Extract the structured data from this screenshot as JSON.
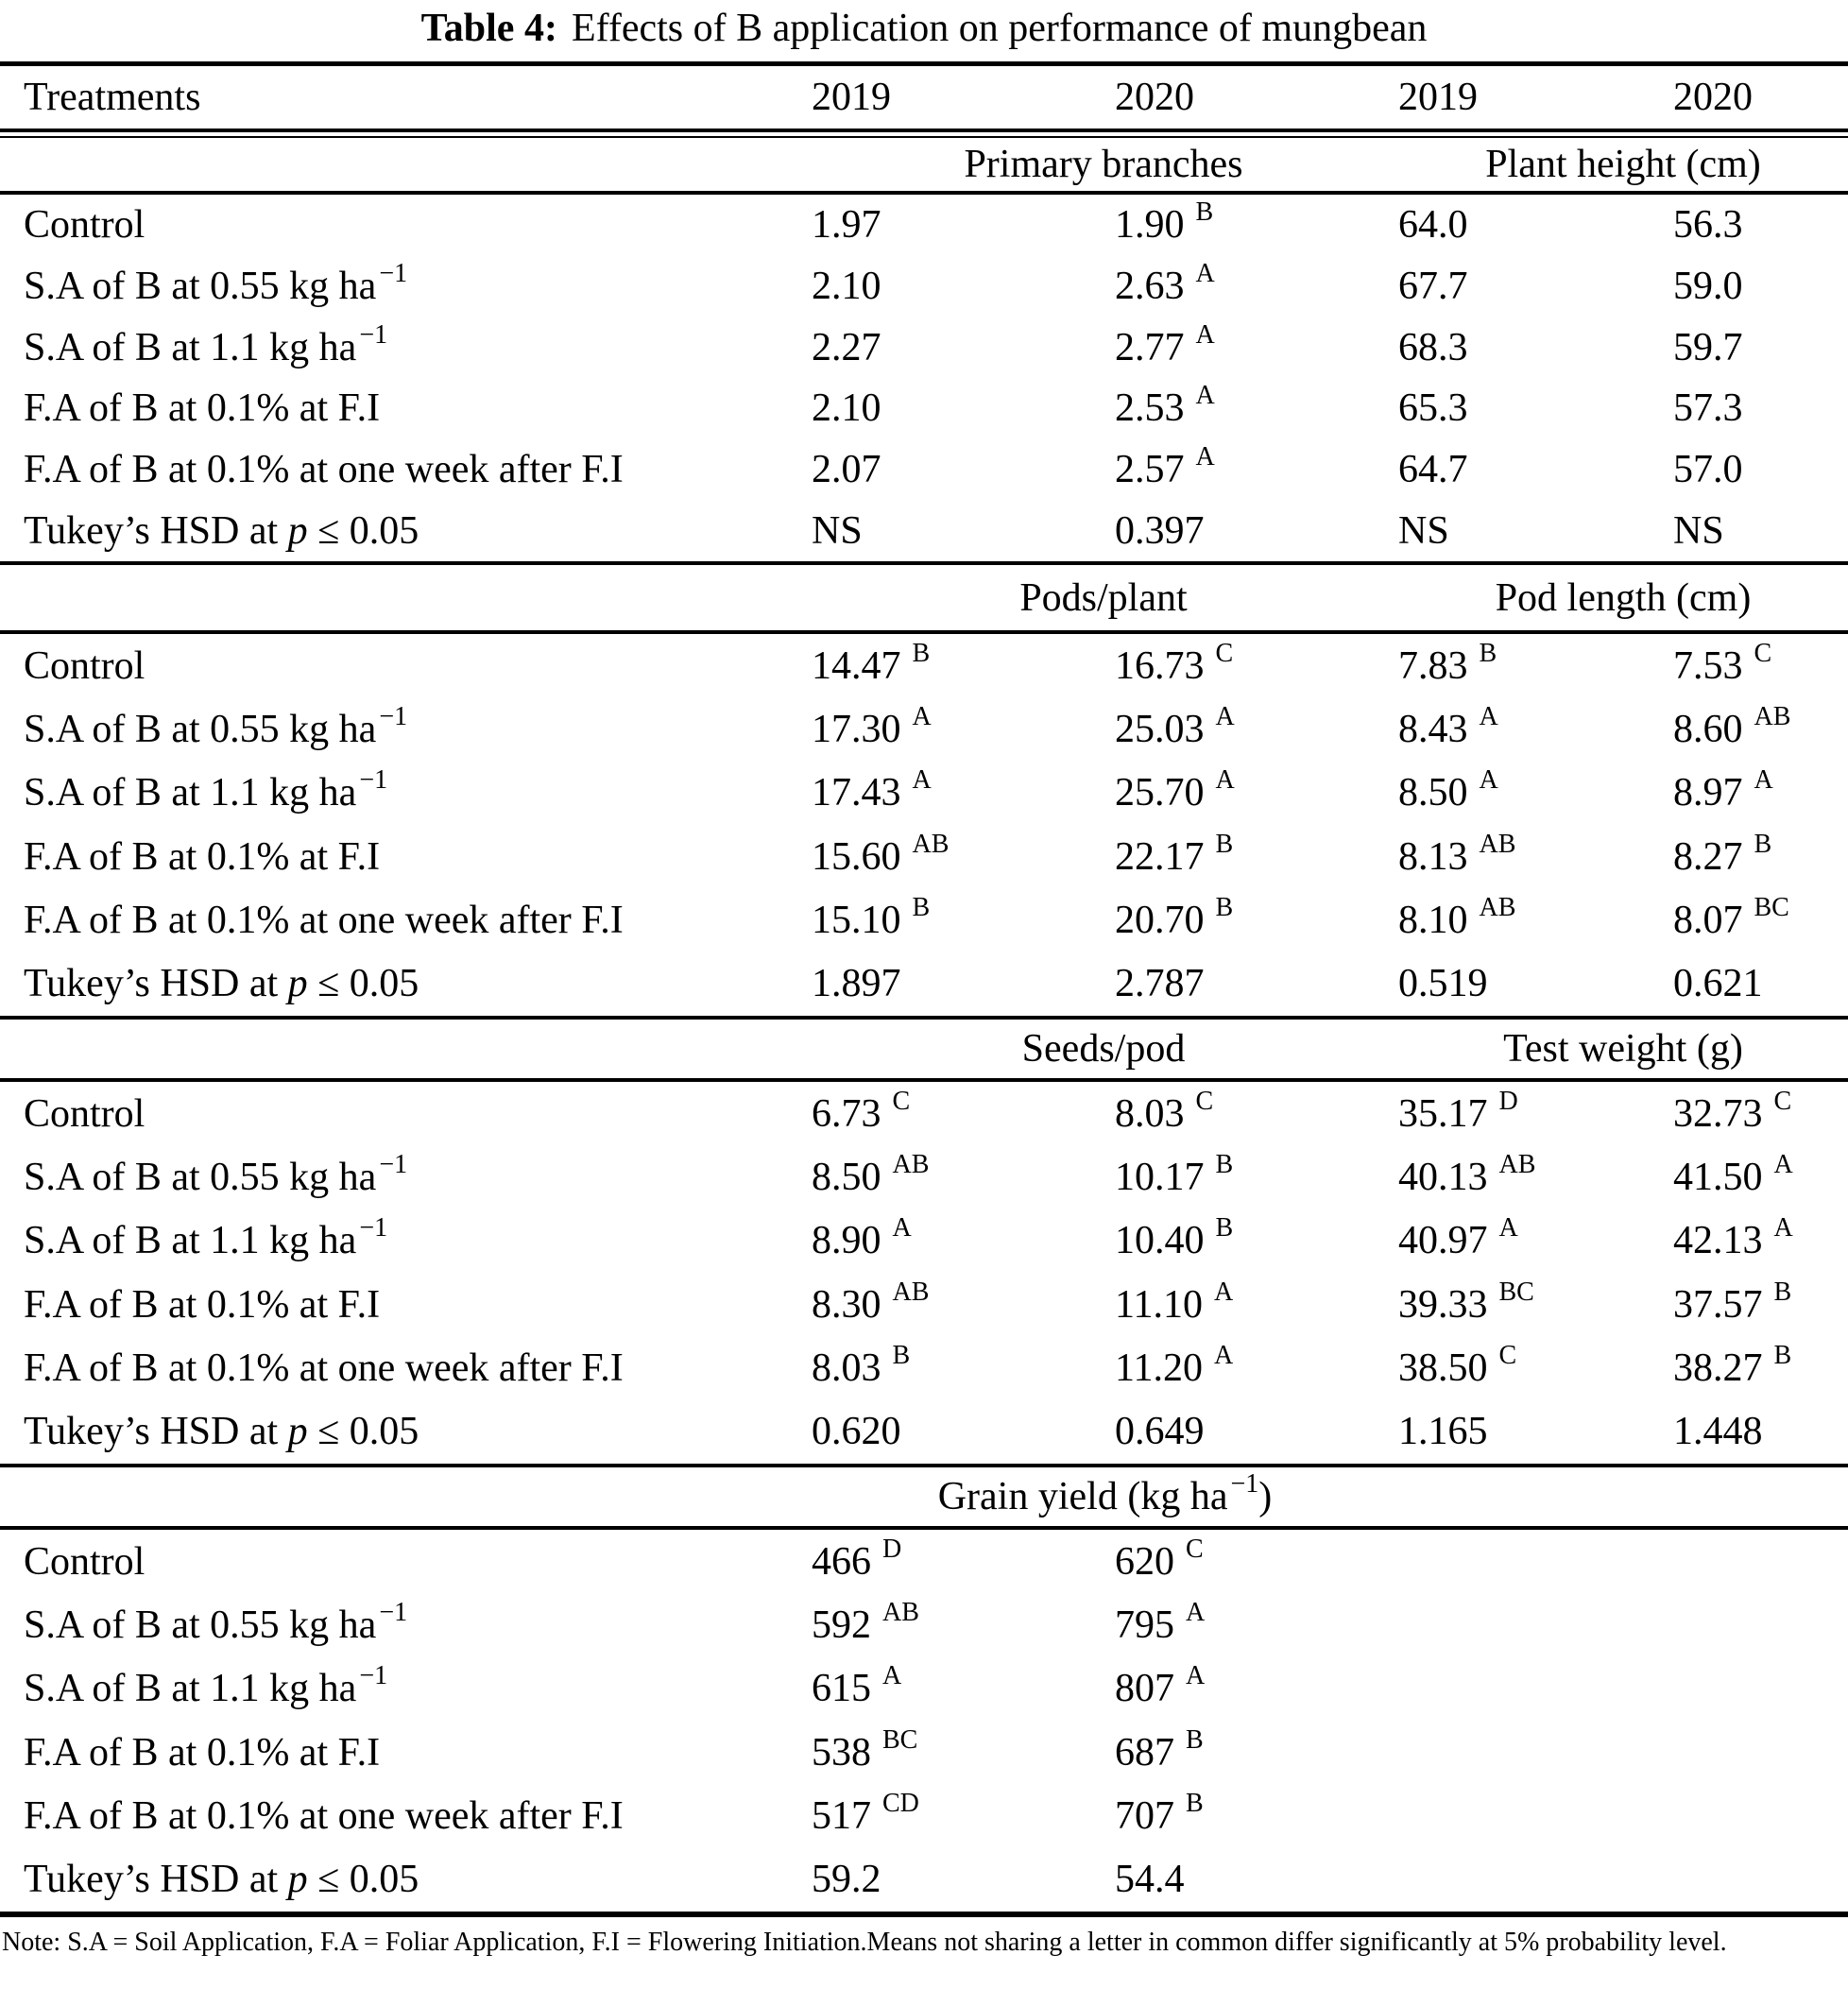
{
  "title": {
    "label": "Table 4:",
    "text": "Effects of B application on performance of mungbean"
  },
  "header": {
    "treatments": "Treatments",
    "years": [
      "2019",
      "2020",
      "2019",
      "2020"
    ]
  },
  "sections": [
    {
      "group_left": {
        "pre": "Primary branches",
        "sup": "",
        "post": ""
      },
      "group_right": {
        "pre": "Plant height (cm)",
        "sup": "",
        "post": ""
      },
      "rows": [
        {
          "label": {
            "pre": "Control",
            "it": "",
            "post": "",
            "sup": ""
          },
          "cells": [
            {
              "v": "1.97",
              "s": ""
            },
            {
              "v": "1.90",
              "s": "B"
            },
            {
              "v": "64.0",
              "s": ""
            },
            {
              "v": "56.3",
              "s": ""
            }
          ]
        },
        {
          "label": {
            "pre": "S.A of B at 0.55 kg ha",
            "it": "",
            "post": "",
            "sup": "−1"
          },
          "cells": [
            {
              "v": "2.10",
              "s": ""
            },
            {
              "v": "2.63",
              "s": "A"
            },
            {
              "v": "67.7",
              "s": ""
            },
            {
              "v": "59.0",
              "s": ""
            }
          ]
        },
        {
          "label": {
            "pre": "S.A of B at 1.1 kg ha",
            "it": "",
            "post": "",
            "sup": "−1"
          },
          "cells": [
            {
              "v": "2.27",
              "s": ""
            },
            {
              "v": "2.77",
              "s": "A"
            },
            {
              "v": "68.3",
              "s": ""
            },
            {
              "v": "59.7",
              "s": ""
            }
          ]
        },
        {
          "label": {
            "pre": "F.A of B at 0.1% at F.I",
            "it": "",
            "post": "",
            "sup": ""
          },
          "cells": [
            {
              "v": "2.10",
              "s": ""
            },
            {
              "v": "2.53",
              "s": "A"
            },
            {
              "v": "65.3",
              "s": ""
            },
            {
              "v": "57.3",
              "s": ""
            }
          ]
        },
        {
          "label": {
            "pre": "F.A of B at 0.1% at one week after F.I",
            "it": "",
            "post": "",
            "sup": ""
          },
          "cells": [
            {
              "v": "2.07",
              "s": ""
            },
            {
              "v": "2.57",
              "s": "A"
            },
            {
              "v": "64.7",
              "s": ""
            },
            {
              "v": "57.0",
              "s": ""
            }
          ]
        },
        {
          "label": {
            "pre": "Tukey’s HSD at ",
            "it": "p",
            "post": " ≤ 0.05",
            "sup": ""
          },
          "cells": [
            {
              "v": "NS",
              "s": ""
            },
            {
              "v": "0.397",
              "s": ""
            },
            {
              "v": "NS",
              "s": ""
            },
            {
              "v": "NS",
              "s": ""
            }
          ]
        }
      ]
    },
    {
      "group_left": {
        "pre": "Pods/plant",
        "sup": "",
        "post": ""
      },
      "group_right": {
        "pre": "Pod length (cm)",
        "sup": "",
        "post": ""
      },
      "rows": [
        {
          "label": {
            "pre": "Control",
            "it": "",
            "post": "",
            "sup": ""
          },
          "cells": [
            {
              "v": "14.47",
              "s": "B"
            },
            {
              "v": "16.73",
              "s": "C"
            },
            {
              "v": "7.83",
              "s": "B"
            },
            {
              "v": "7.53",
              "s": "C"
            }
          ]
        },
        {
          "label": {
            "pre": "S.A of B at 0.55 kg ha",
            "it": "",
            "post": "",
            "sup": "−1"
          },
          "cells": [
            {
              "v": "17.30",
              "s": "A"
            },
            {
              "v": "25.03",
              "s": "A"
            },
            {
              "v": "8.43",
              "s": "A"
            },
            {
              "v": "8.60",
              "s": "AB"
            }
          ]
        },
        {
          "label": {
            "pre": "S.A of B at 1.1 kg ha",
            "it": "",
            "post": "",
            "sup": "−1"
          },
          "cells": [
            {
              "v": "17.43",
              "s": "A"
            },
            {
              "v": "25.70",
              "s": "A"
            },
            {
              "v": "8.50",
              "s": "A"
            },
            {
              "v": "8.97",
              "s": "A"
            }
          ]
        },
        {
          "label": {
            "pre": "F.A of B at 0.1% at F.I",
            "it": "",
            "post": "",
            "sup": ""
          },
          "cells": [
            {
              "v": "15.60",
              "s": "AB"
            },
            {
              "v": "22.17",
              "s": "B"
            },
            {
              "v": "8.13",
              "s": "AB"
            },
            {
              "v": "8.27",
              "s": "B"
            }
          ]
        },
        {
          "label": {
            "pre": "F.A of B at 0.1% at one week after F.I",
            "it": "",
            "post": "",
            "sup": ""
          },
          "cells": [
            {
              "v": "15.10",
              "s": "B"
            },
            {
              "v": "20.70",
              "s": "B"
            },
            {
              "v": "8.10",
              "s": "AB"
            },
            {
              "v": "8.07",
              "s": "BC"
            }
          ]
        },
        {
          "label": {
            "pre": "Tukey’s HSD at ",
            "it": "p",
            "post": " ≤ 0.05",
            "sup": ""
          },
          "cells": [
            {
              "v": "1.897",
              "s": ""
            },
            {
              "v": "2.787",
              "s": ""
            },
            {
              "v": "0.519",
              "s": ""
            },
            {
              "v": "0.621",
              "s": ""
            }
          ]
        }
      ]
    },
    {
      "group_left": {
        "pre": "Seeds/pod",
        "sup": "",
        "post": ""
      },
      "group_right": {
        "pre": "Test weight (g)",
        "sup": "",
        "post": ""
      },
      "rows": [
        {
          "label": {
            "pre": "Control",
            "it": "",
            "post": "",
            "sup": ""
          },
          "cells": [
            {
              "v": "6.73",
              "s": "C"
            },
            {
              "v": "8.03",
              "s": "C"
            },
            {
              "v": "35.17",
              "s": "D"
            },
            {
              "v": "32.73",
              "s": "C"
            }
          ]
        },
        {
          "label": {
            "pre": "S.A of B at 0.55 kg ha",
            "it": "",
            "post": "",
            "sup": "−1"
          },
          "cells": [
            {
              "v": "8.50",
              "s": "AB"
            },
            {
              "v": "10.17",
              "s": "B"
            },
            {
              "v": "40.13",
              "s": "AB"
            },
            {
              "v": "41.50",
              "s": "A"
            }
          ]
        },
        {
          "label": {
            "pre": "S.A of B at 1.1 kg ha",
            "it": "",
            "post": "",
            "sup": "−1"
          },
          "cells": [
            {
              "v": "8.90",
              "s": "A"
            },
            {
              "v": "10.40",
              "s": "B"
            },
            {
              "v": "40.97",
              "s": "A"
            },
            {
              "v": "42.13",
              "s": "A"
            }
          ]
        },
        {
          "label": {
            "pre": "F.A of B at 0.1% at F.I",
            "it": "",
            "post": "",
            "sup": ""
          },
          "cells": [
            {
              "v": "8.30",
              "s": "AB"
            },
            {
              "v": "11.10",
              "s": "A"
            },
            {
              "v": "39.33",
              "s": "BC"
            },
            {
              "v": "37.57",
              "s": "B"
            }
          ]
        },
        {
          "label": {
            "pre": "F.A of B at 0.1% at one week after F.I",
            "it": "",
            "post": "",
            "sup": ""
          },
          "cells": [
            {
              "v": "8.03",
              "s": "B"
            },
            {
              "v": "11.20",
              "s": "A"
            },
            {
              "v": "38.50",
              "s": "C"
            },
            {
              "v": "38.27",
              "s": "B"
            }
          ]
        },
        {
          "label": {
            "pre": "Tukey’s HSD at ",
            "it": "p",
            "post": " ≤ 0.05",
            "sup": ""
          },
          "cells": [
            {
              "v": "0.620",
              "s": ""
            },
            {
              "v": "0.649",
              "s": ""
            },
            {
              "v": "1.165",
              "s": ""
            },
            {
              "v": "1.448",
              "s": ""
            }
          ]
        }
      ]
    },
    {
      "group_left": {
        "pre": "Grain yield (kg ha",
        "sup": "−1",
        "post": ")"
      },
      "group_right": {
        "pre": "",
        "sup": "",
        "post": ""
      },
      "rows": [
        {
          "label": {
            "pre": "Control",
            "it": "",
            "post": "",
            "sup": ""
          },
          "cells": [
            {
              "v": "466",
              "s": "D"
            },
            {
              "v": "620",
              "s": "C"
            },
            {
              "v": "",
              "s": ""
            },
            {
              "v": "",
              "s": ""
            }
          ]
        },
        {
          "label": {
            "pre": "S.A of B at 0.55 kg ha",
            "it": "",
            "post": "",
            "sup": "−1"
          },
          "cells": [
            {
              "v": "592",
              "s": "AB"
            },
            {
              "v": "795",
              "s": "A"
            },
            {
              "v": "",
              "s": ""
            },
            {
              "v": "",
              "s": ""
            }
          ]
        },
        {
          "label": {
            "pre": "S.A of B at 1.1 kg ha",
            "it": "",
            "post": "",
            "sup": "−1"
          },
          "cells": [
            {
              "v": "615",
              "s": "A"
            },
            {
              "v": "807",
              "s": "A"
            },
            {
              "v": "",
              "s": ""
            },
            {
              "v": "",
              "s": ""
            }
          ]
        },
        {
          "label": {
            "pre": "F.A of B at 0.1% at F.I",
            "it": "",
            "post": "",
            "sup": ""
          },
          "cells": [
            {
              "v": "538",
              "s": "BC"
            },
            {
              "v": "687",
              "s": "B"
            },
            {
              "v": "",
              "s": ""
            },
            {
              "v": "",
              "s": ""
            }
          ]
        },
        {
          "label": {
            "pre": "F.A of B at 0.1% at one week after F.I",
            "it": "",
            "post": "",
            "sup": ""
          },
          "cells": [
            {
              "v": "517",
              "s": "CD"
            },
            {
              "v": "707",
              "s": "B"
            },
            {
              "v": "",
              "s": ""
            },
            {
              "v": "",
              "s": ""
            }
          ]
        },
        {
          "label": {
            "pre": "Tukey’s HSD at ",
            "it": "p",
            "post": " ≤ 0.05",
            "sup": ""
          },
          "cells": [
            {
              "v": "59.2",
              "s": ""
            },
            {
              "v": "54.4",
              "s": ""
            },
            {
              "v": "",
              "s": ""
            },
            {
              "v": "",
              "s": ""
            }
          ]
        }
      ]
    }
  ],
  "note": "Note: S.A = Soil Application, F.A = Foliar Application, F.I = Flowering Initiation.Means not sharing a letter in common differ significantly at 5% probability level."
}
